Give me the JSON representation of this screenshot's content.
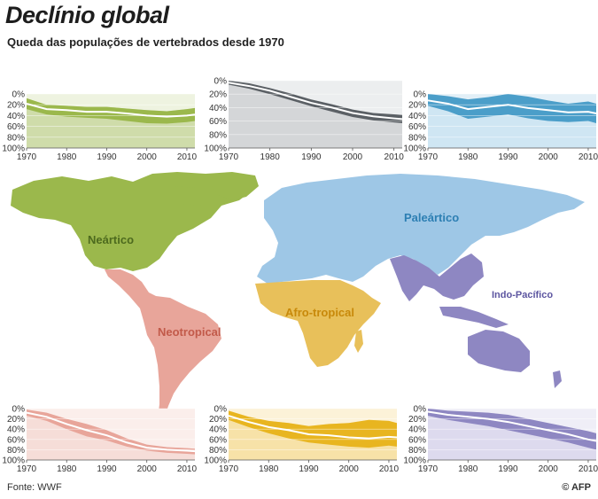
{
  "header": {
    "title": "Declínio global",
    "subtitle": "Queda das populações de vertebrados desde 1970"
  },
  "footer": {
    "source": "Fonte: WWF",
    "credit": "© AFP"
  },
  "map_labels": {
    "nearctic": "Neártico",
    "neotropical": "Neotropical",
    "palearctic": "Paleártico",
    "afrotropical": "Afro-tropical",
    "indopacific": "Indo-Pacífico"
  },
  "colors": {
    "nearctic": "#9bb84c",
    "nearctic_light": "#cfdcaa",
    "palearctic_chart": "#5b6065",
    "palearctic_chart_light": "#d4d6d8",
    "palearctic_map": "#9ec7e6",
    "indopacific_chart": "#4b9ec9",
    "indopacific_chart_light": "#cfe6f3",
    "neotropical": "#e8a59a",
    "neotropical_light": "#f6ddd8",
    "afrotropical": "#e8b520",
    "afrotropical_light": "#f7e2a8",
    "indopacific_map": "#8e87c2",
    "indopacific_map_light": "#dddaee"
  },
  "chart_data": [
    {
      "type": "area",
      "region": "nearctic",
      "x": [
        1970,
        1975,
        1980,
        1985,
        1990,
        1995,
        2000,
        2005,
        2010,
        2012
      ],
      "values": [
        -18,
        -28,
        -30,
        -33,
        -33,
        -36,
        -40,
        -42,
        -40,
        -38
      ],
      "band_low": [
        -8,
        -20,
        -22,
        -24,
        -24,
        -27,
        -30,
        -32,
        -28,
        -26
      ],
      "band_high": [
        -28,
        -38,
        -42,
        -44,
        -46,
        -50,
        -54,
        -55,
        -52,
        -50
      ],
      "y_ticks": [
        "0%",
        "20%",
        "40%",
        "60%",
        "80%",
        "100%"
      ],
      "x_ticks": [
        "1970",
        "1980",
        "1990",
        "2000",
        "2010"
      ],
      "ylim": [
        0,
        -100
      ]
    },
    {
      "type": "area",
      "region": "palearctic",
      "x": [
        1970,
        1975,
        1980,
        1985,
        1990,
        1995,
        2000,
        2005,
        2010,
        2012
      ],
      "values": [
        -3,
        -8,
        -15,
        -24,
        -33,
        -40,
        -48,
        -53,
        -56,
        -57
      ],
      "band_low": [
        0,
        -4,
        -11,
        -19,
        -28,
        -35,
        -43,
        -48,
        -50,
        -51
      ],
      "band_high": [
        -6,
        -12,
        -20,
        -29,
        -38,
        -46,
        -54,
        -59,
        -62,
        -63
      ],
      "y_ticks": [
        "0%",
        "20%",
        "40%",
        "60%",
        "80%",
        "100%"
      ],
      "x_ticks": [
        "1970",
        "1980",
        "1990",
        "2000",
        "2010"
      ],
      "ylim": [
        0,
        -100
      ]
    },
    {
      "type": "area",
      "region": "indopacific_top",
      "x": [
        1970,
        1975,
        1980,
        1985,
        1990,
        1995,
        2000,
        2005,
        2010,
        2012
      ],
      "values": [
        -12,
        -18,
        -28,
        -24,
        -20,
        -26,
        -30,
        -34,
        -33,
        -36
      ],
      "band_low": [
        0,
        -4,
        -10,
        -6,
        0,
        -5,
        -12,
        -18,
        -14,
        -18
      ],
      "band_high": [
        -22,
        -32,
        -46,
        -42,
        -38,
        -45,
        -50,
        -52,
        -50,
        -54
      ],
      "y_ticks": [
        "0%",
        "20%",
        "40%",
        "60%",
        "80%",
        "100%"
      ],
      "x_ticks": [
        "1970",
        "1980",
        "1990",
        "2000",
        "2010"
      ],
      "ylim": [
        0,
        -100
      ]
    },
    {
      "type": "area",
      "region": "neotropical",
      "x": [
        1970,
        1975,
        1980,
        1985,
        1990,
        1995,
        2000,
        2005,
        2010,
        2012
      ],
      "values": [
        -8,
        -16,
        -30,
        -42,
        -52,
        -66,
        -76,
        -80,
        -82,
        -83
      ],
      "band_low": [
        -2,
        -8,
        -20,
        -30,
        -42,
        -58,
        -70,
        -75,
        -77,
        -78
      ],
      "band_high": [
        -14,
        -24,
        -40,
        -54,
        -62,
        -74,
        -82,
        -86,
        -88,
        -89
      ],
      "y_ticks": [
        "0%",
        "20%",
        "40%",
        "60%",
        "80%",
        "100%"
      ],
      "x_ticks": [
        "1970",
        "1980",
        "1990",
        "2000",
        "2010"
      ],
      "ylim": [
        0,
        -100
      ]
    },
    {
      "type": "area",
      "region": "afrotropical",
      "x": [
        1970,
        1975,
        1980,
        1985,
        1990,
        1995,
        2000,
        2005,
        2010,
        2012
      ],
      "values": [
        -14,
        -26,
        -36,
        -42,
        -50,
        -52,
        -56,
        -58,
        -55,
        -56
      ],
      "band_low": [
        -4,
        -16,
        -24,
        -28,
        -34,
        -30,
        -28,
        -22,
        -24,
        -28
      ],
      "band_high": [
        -22,
        -36,
        -48,
        -58,
        -66,
        -70,
        -74,
        -76,
        -72,
        -74
      ],
      "y_ticks": [
        "0%",
        "20%",
        "40%",
        "60%",
        "80%",
        "100%"
      ],
      "x_ticks": [
        "1970",
        "1980",
        "1990",
        "2000",
        "2010"
      ],
      "ylim": [
        0,
        -100
      ]
    },
    {
      "type": "area",
      "region": "indopacific",
      "x": [
        1970,
        1975,
        1980,
        1985,
        1990,
        1995,
        2000,
        2005,
        2010,
        2012
      ],
      "values": [
        -6,
        -12,
        -16,
        -20,
        -26,
        -34,
        -42,
        -50,
        -60,
        -63
      ],
      "band_low": [
        0,
        -4,
        -6,
        -8,
        -12,
        -20,
        -28,
        -36,
        -44,
        -48
      ],
      "band_high": [
        -14,
        -22,
        -28,
        -34,
        -42,
        -50,
        -58,
        -66,
        -76,
        -80
      ],
      "y_ticks": [
        "0%",
        "20%",
        "40%",
        "60%",
        "80%",
        "100%"
      ],
      "x_ticks": [
        "1970",
        "1980",
        "1990",
        "2000",
        "2010"
      ],
      "ylim": [
        0,
        -100
      ]
    }
  ]
}
